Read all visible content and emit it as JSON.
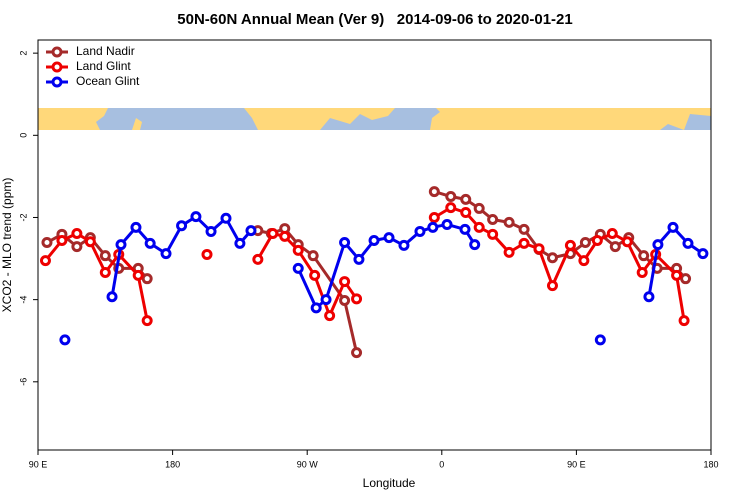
{
  "chart_data": {
    "type": "line",
    "title": "50N-60N Annual Mean (Ver 9)   2014-09-06 to 2020-01-21",
    "x_label": "Longitude",
    "y_label": "XCO2 - MLO trend (ppm)",
    "xlim": [
      90,
      540
    ],
    "ylim": [
      -7.66,
      2.32
    ],
    "xticks": [
      {
        "value": 90,
        "label": "90 E"
      },
      180,
      {
        "value": 270,
        "label": "90 W"
      },
      {
        "value": 360,
        "label": "0"
      },
      {
        "value": 450,
        "label": "90 E"
      },
      {
        "value": 540,
        "label": "180"
      }
    ],
    "yticks": [
      -6,
      -4,
      -2,
      0,
      2
    ],
    "grid": false,
    "legend": "top-left",
    "series": [
      {
        "name": "Land Nadir",
        "color": "#a52a2a",
        "x": [
          96,
          106,
          116,
          125,
          135,
          144,
          157,
          163,
          200,
          237,
          246,
          255,
          264,
          274,
          295,
          303,
          330,
          355,
          366,
          376,
          385,
          394,
          405,
          415,
          425,
          434,
          446,
          456,
          466,
          476,
          485,
          495,
          504,
          517,
          523
        ],
        "values": [
          -2.61,
          -2.41,
          -2.71,
          -2.49,
          -2.93,
          -3.24,
          -3.24,
          -3.49,
          null,
          -2.32,
          -2.39,
          -2.27,
          -2.66,
          -2.93,
          -4.02,
          -5.29,
          null,
          -1.37,
          -1.49,
          -1.56,
          -1.78,
          -2.05,
          -2.12,
          -2.29,
          -2.78,
          -2.98,
          -2.88,
          -2.61,
          -2.41,
          -2.71,
          -2.49,
          -2.93,
          -3.24,
          -3.24,
          -3.49
        ]
      },
      {
        "name": "Land Glint",
        "color": "#ee0000",
        "x": [
          95,
          106,
          116,
          125,
          135,
          144,
          157,
          163,
          180,
          203,
          220,
          237,
          247,
          255,
          264,
          275,
          285,
          295,
          303,
          330,
          355,
          366,
          376,
          385,
          394,
          405,
          415,
          425,
          434,
          446,
          455,
          464,
          474,
          484,
          494,
          503,
          517,
          522
        ],
        "values": [
          -3.05,
          -2.56,
          -2.39,
          -2.59,
          -3.34,
          -2.9,
          -3.41,
          -4.51,
          null,
          -2.9,
          null,
          -3.02,
          -2.39,
          -2.46,
          -2.8,
          -3.41,
          -4.39,
          -3.56,
          -3.98,
          null,
          -2.0,
          -1.76,
          -1.88,
          -2.24,
          -2.41,
          -2.85,
          -2.63,
          -2.76,
          -3.66,
          -2.68,
          -3.05,
          -2.56,
          -2.39,
          -2.59,
          -3.34,
          -2.9,
          -3.41,
          -4.51
        ]
      },
      {
        "name": "Ocean Glint",
        "color": "#0000ee",
        "x": [
          108,
          125,
          139.5,
          145.5,
          155.5,
          165,
          175.6,
          186,
          195.6,
          205.7,
          215.7,
          225,
          232.4,
          250,
          264,
          276,
          282.6,
          295,
          304.6,
          314.7,
          324.7,
          334.7,
          345.4,
          354,
          363.5,
          375.5,
          382,
          420,
          466,
          480,
          498.5,
          504.5,
          514.6,
          524.6,
          534.6
        ],
        "values": [
          -4.98,
          null,
          -3.93,
          -2.66,
          -2.24,
          -2.63,
          -2.88,
          -2.2,
          -1.98,
          -2.34,
          -2.02,
          -2.63,
          -2.32,
          null,
          -3.24,
          -4.2,
          -4.0,
          -2.61,
          -3.02,
          -2.56,
          -2.49,
          -2.68,
          -2.34,
          -2.24,
          -2.17,
          -2.29,
          -2.66,
          null,
          -4.98,
          null,
          -3.93,
          -2.66,
          -2.24,
          -2.63,
          -2.88
        ]
      }
    ]
  }
}
